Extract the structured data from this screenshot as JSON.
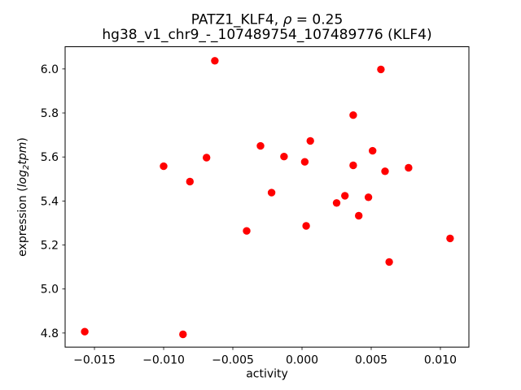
{
  "figure": {
    "title": {
      "prefix": "PATZ1_KLF4, ",
      "rho": "ρ",
      "suffix": " = 0.25"
    },
    "subtitle": "hg38_v1_chr9_-_107489754_107489776 (KLF4)",
    "xlabel": "activity",
    "ylabel": {
      "prefix": "expression (",
      "log": "log",
      "sub": "2",
      "tpm": "tpm",
      "suffix": ")"
    }
  },
  "colors": {
    "marker": "#ff0000",
    "axis": "#000000",
    "background": "#ffffff"
  },
  "chart_data": {
    "type": "scatter",
    "title": "PATZ1_KLF4, ρ = 0.25\nhg38_v1_chr9_-_107489754_107489776 (KLF4)",
    "xlabel": "activity",
    "ylabel": "expression (log2tpm)",
    "grid": false,
    "legend": false,
    "marker_color": "#ff0000",
    "marker_radius_px": 4.7,
    "xlim": [
      -0.01712,
      0.01206
    ],
    "ylim": [
      4.736,
      6.101
    ],
    "x_ticks": [
      -0.015,
      -0.01,
      -0.005,
      0,
      0.005,
      0.01
    ],
    "x_tick_labels": [
      "−0.015",
      "−0.010",
      "−0.005",
      "0.000",
      "0.005",
      "0.010"
    ],
    "y_ticks": [
      4.8,
      5.0,
      5.2,
      5.4,
      5.6,
      5.8,
      6.0
    ],
    "y_tick_labels": [
      "4.8",
      "5.0",
      "5.2",
      "5.4",
      "5.6",
      "5.8",
      "6.0"
    ],
    "points": [
      [
        -0.0157,
        4.806
      ],
      [
        -0.01,
        5.558
      ],
      [
        -0.0086,
        4.794
      ],
      [
        -0.0081,
        5.488
      ],
      [
        -0.0069,
        5.597
      ],
      [
        -0.0063,
        6.037
      ],
      [
        -0.004,
        5.264
      ],
      [
        -0.003,
        5.65
      ],
      [
        -0.0022,
        5.438
      ],
      [
        -0.0013,
        5.602
      ],
      [
        0.0002,
        5.578
      ],
      [
        0.0003,
        5.287
      ],
      [
        0.0006,
        5.673
      ],
      [
        0.0025,
        5.391
      ],
      [
        0.0031,
        5.424
      ],
      [
        0.0037,
        5.79
      ],
      [
        0.0037,
        5.562
      ],
      [
        0.0041,
        5.333
      ],
      [
        0.0048,
        5.417
      ],
      [
        0.0051,
        5.628
      ],
      [
        0.0057,
        5.998
      ],
      [
        0.006,
        5.535
      ],
      [
        0.0063,
        5.123
      ],
      [
        0.0077,
        5.551
      ],
      [
        0.0107,
        5.23
      ]
    ]
  }
}
